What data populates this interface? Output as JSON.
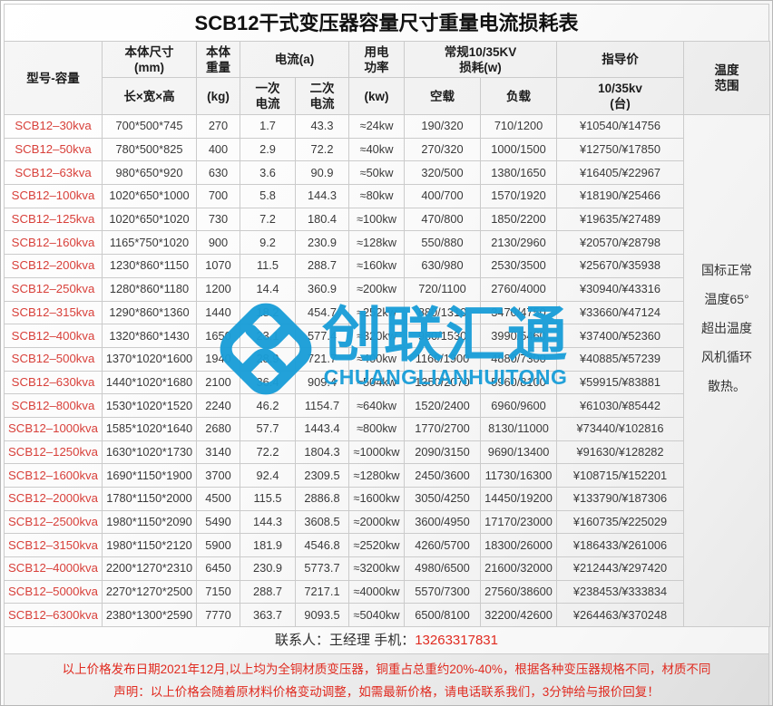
{
  "title": "SCB12干式变压器容量尺寸重量电流损耗表",
  "header": {
    "model": "型号-容量",
    "size": "本体尺寸\n(mm)",
    "size_sub": "长×宽×高",
    "weight": "本体\n重量",
    "weight_sub": "(kg)",
    "current_group": "电流(a)",
    "current_primary": "一次\n电流",
    "current_secondary": "二次\n电流",
    "power": "用电\n功率",
    "power_sub": "(kw)",
    "loss_group": "常规10/35KV\n损耗(w)",
    "no_load": "空载",
    "load": "负载",
    "price": "指导价",
    "price_sub": "10/35kv\n(台)",
    "temperature": "温度\n范围"
  },
  "rows": [
    [
      "SCB12–30kva",
      "700*500*745",
      "270",
      "1.7",
      "43.3",
      "≈24kw",
      "190/320",
      "710/1200",
      "¥10540/¥14756"
    ],
    [
      "SCB12–50kva",
      "780*500*825",
      "400",
      "2.9",
      "72.2",
      "≈40kw",
      "270/320",
      "1000/1500",
      "¥12750/¥17850"
    ],
    [
      "SCB12–63kva",
      "980*650*920",
      "630",
      "3.6",
      "90.9",
      "≈50kw",
      "320/500",
      "1380/1650",
      "¥16405/¥22967"
    ],
    [
      "SCB12–100kva",
      "1020*650*1000",
      "700",
      "5.8",
      "144.3",
      "≈80kw",
      "400/700",
      "1570/1920",
      "¥18190/¥25466"
    ],
    [
      "SCB12–125kva",
      "1020*650*1020",
      "730",
      "7.2",
      "180.4",
      "≈100kw",
      "470/800",
      "1850/2200",
      "¥19635/¥27489"
    ],
    [
      "SCB12–160kva",
      "1165*750*1020",
      "900",
      "9.2",
      "230.9",
      "≈128kw",
      "550/880",
      "2130/2960",
      "¥20570/¥28798"
    ],
    [
      "SCB12–200kva",
      "1230*860*1150",
      "1070",
      "11.5",
      "288.7",
      "≈160kw",
      "630/980",
      "2530/3500",
      "¥25670/¥35938"
    ],
    [
      "SCB12–250kva",
      "1280*860*1180",
      "1200",
      "14.4",
      "360.9",
      "≈200kw",
      "720/1100",
      "2760/4000",
      "¥30940/¥43316"
    ],
    [
      "SCB12–315kva",
      "1290*860*1360",
      "1440",
      "18.2",
      "454.7",
      "≈252kw",
      "880/1310",
      "3470/4750",
      "¥33660/¥47124"
    ],
    [
      "SCB12–400kva",
      "1320*860*1430",
      "1650",
      "23.1",
      "577.4",
      "≈320kw",
      "980/1530",
      "3990/5460",
      "¥37400/¥52360"
    ],
    [
      "SCB12–500kva",
      "1370*1020*1600",
      "1940",
      "28.9",
      "721.7",
      "≈400kw",
      "1160/1900",
      "4880/7300",
      "¥40885/¥57239"
    ],
    [
      "SCB12–630kva",
      "1440*1020*1680",
      "2100",
      "36.4",
      "909.4",
      "≈504kw",
      "1350/2070",
      "5960/8100",
      "¥59915/¥83881"
    ],
    [
      "SCB12–800kva",
      "1530*1020*1520",
      "2240",
      "46.2",
      "1154.7",
      "≈640kw",
      "1520/2400",
      "6960/9600",
      "¥61030/¥85442"
    ],
    [
      "SCB12–1000kva",
      "1585*1020*1640",
      "2680",
      "57.7",
      "1443.4",
      "≈800kw",
      "1770/2700",
      "8130/11000",
      "¥73440/¥102816"
    ],
    [
      "SCB12–1250kva",
      "1630*1020*1730",
      "3140",
      "72.2",
      "1804.3",
      "≈1000kw",
      "2090/3150",
      "9690/13400",
      "¥91630/¥128282"
    ],
    [
      "SCB12–1600kva",
      "1690*1150*1900",
      "3700",
      "92.4",
      "2309.5",
      "≈1280kw",
      "2450/3600",
      "11730/16300",
      "¥108715/¥152201"
    ],
    [
      "SCB12–2000kva",
      "1780*1150*2000",
      "4500",
      "115.5",
      "2886.8",
      "≈1600kw",
      "3050/4250",
      "14450/19200",
      "¥133790/¥187306"
    ],
    [
      "SCB12–2500kva",
      "1980*1150*2090",
      "5490",
      "144.3",
      "3608.5",
      "≈2000kw",
      "3600/4950",
      "17170/23000",
      "¥160735/¥225029"
    ],
    [
      "SCB12–3150kva",
      "1980*1150*2120",
      "5900",
      "181.9",
      "4546.8",
      "≈2520kw",
      "4260/5700",
      "18300/26000",
      "¥186433/¥261006"
    ],
    [
      "SCB12–4000kva",
      "2200*1270*2310",
      "6450",
      "230.9",
      "5773.7",
      "≈3200kw",
      "4980/6500",
      "21600/32000",
      "¥212443/¥297420"
    ],
    [
      "SCB12–5000kva",
      "2270*1270*2500",
      "7150",
      "288.7",
      "7217.1",
      "≈4000kw",
      "5570/7300",
      "27560/38600",
      "¥238453/¥333834"
    ],
    [
      "SCB12–6300kva",
      "2380*1300*2590",
      "7770",
      "363.7",
      "9093.5",
      "≈5040kw",
      "6500/8100",
      "32200/42600",
      "¥264463/¥370248"
    ]
  ],
  "temperature_note_lines": [
    "国标正常",
    "温度65°",
    "超出温度",
    "风机循环",
    "散热。"
  ],
  "contact": {
    "prefix": "联系人：王经理 手机：",
    "phone": "13263317831"
  },
  "disclaimer_lines": [
    "以上价格发布日期2021年12月,以上均为全铜材质变压器，铜重占总重约20%-40%，根据各种变压器规格不同，材质不同",
    "声明：以上价格会随着原材料价格变动调整，如需最新价格，请电话联系我们，3分钟给与报价回复！"
  ],
  "watermark": {
    "cn": "创联汇通",
    "en": "CHUANGLIANHUITONG"
  },
  "colors": {
    "accent_blue": "#1a9ed8",
    "model_red": "#d8403a",
    "alert_red": "#e02b20",
    "border_gray": "#cbcbcb"
  }
}
